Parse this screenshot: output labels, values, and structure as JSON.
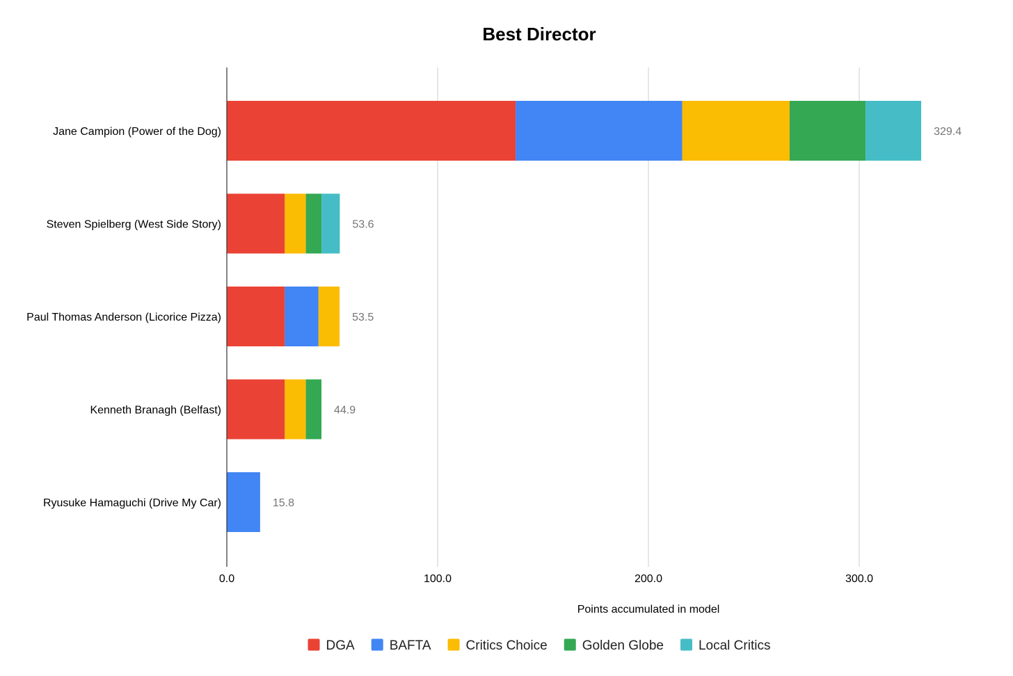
{
  "chart_data": {
    "type": "bar",
    "orientation": "horizontal",
    "stacked": true,
    "title": "Best Director",
    "xlabel": "Points accumulated in model",
    "ylabel": "",
    "xlim": [
      0,
      350
    ],
    "xticks": [
      0,
      100,
      200,
      300
    ],
    "xtick_labels": [
      "0.0",
      "100.0",
      "200.0",
      "300.0"
    ],
    "grid": true,
    "legend_position": "bottom",
    "categories": [
      "Jane Campion (Power of the Dog)",
      "Steven Spielberg (West Side Story)",
      "Paul Thomas Anderson (Licorice Pizza)",
      "Kenneth Branagh (Belfast)",
      "Ryusuke Hamaguchi (Drive My Car)"
    ],
    "series": [
      {
        "name": "DGA",
        "color": "#ea4335",
        "values": [
          137.0,
          27.5,
          27.5,
          27.5,
          0
        ]
      },
      {
        "name": "BAFTA",
        "color": "#4285f4",
        "values": [
          79.0,
          0,
          16.0,
          0,
          15.8
        ]
      },
      {
        "name": "Critics Choice",
        "color": "#fbbc04",
        "values": [
          51.0,
          10.0,
          10.0,
          10.0,
          0
        ]
      },
      {
        "name": "Golden Globe",
        "color": "#34a853",
        "values": [
          36.0,
          7.4,
          0,
          7.4,
          0
        ]
      },
      {
        "name": "Local Critics",
        "color": "#46bdc6",
        "values": [
          26.4,
          8.7,
          0,
          0,
          0
        ]
      }
    ],
    "totals": [
      "329.4",
      "53.6",
      "53.5",
      "44.9",
      "15.8"
    ]
  }
}
